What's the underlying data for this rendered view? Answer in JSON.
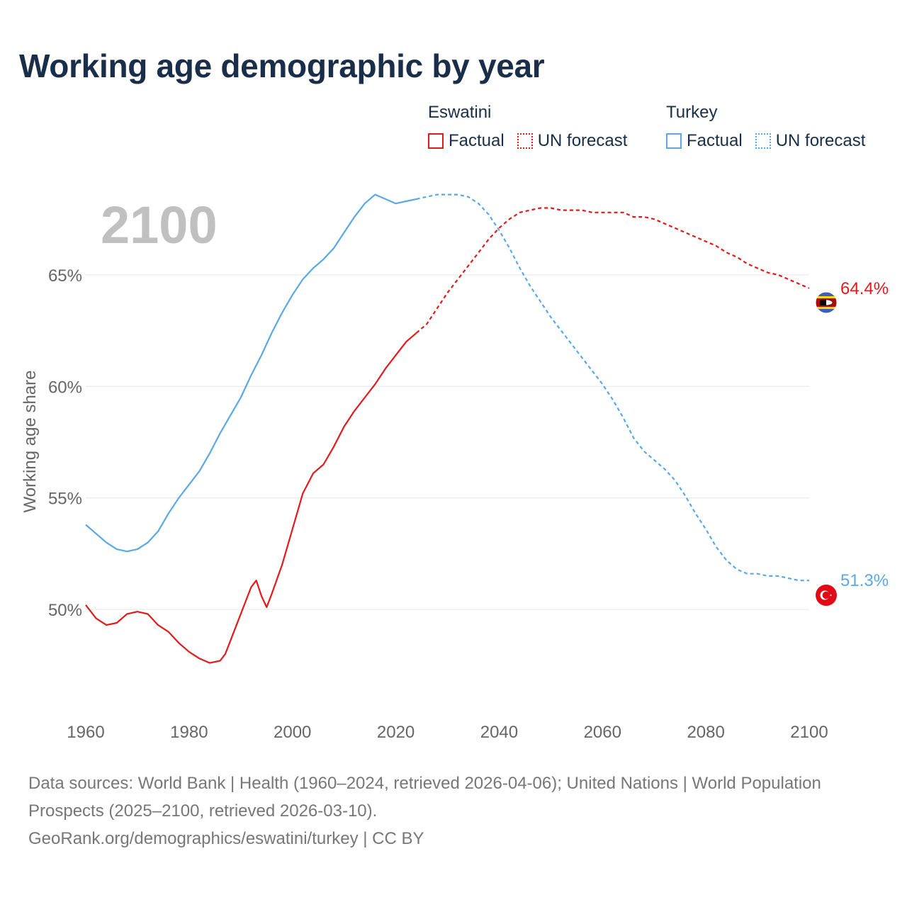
{
  "title": "Working age demographic by year",
  "legend": {
    "groups": [
      {
        "name": "Eswatini",
        "color": "#e31a1c",
        "factual_label": "Factual",
        "forecast_label": "UN forecast"
      },
      {
        "name": "Turkey",
        "color": "#5ba8e6",
        "factual_label": "Factual",
        "forecast_label": "UN forecast"
      }
    ]
  },
  "year_label": "2100",
  "footer": {
    "sources": "Data sources: World Bank | Health (1960–2024, retrieved 2026-04-06); United Nations | World Population Prospects (2025–2100, retrieved 2026-03-10).",
    "attribution": "GeoRank.org/demographics/eswatini/turkey | CC BY"
  },
  "chart_data": {
    "type": "line",
    "title": "Working age demographic by year",
    "xlabel": "",
    "ylabel": "Working age share",
    "xlim": [
      1960,
      2100
    ],
    "ylim": [
      46,
      69
    ],
    "x_ticks": [
      1960,
      1980,
      2000,
      2020,
      2040,
      2060,
      2080,
      2100
    ],
    "x_tick_labels": [
      "1960",
      "1980",
      "2000",
      "2020",
      "2040",
      "2060",
      "2080",
      "2100"
    ],
    "y_ticks": [
      50,
      55,
      60,
      65
    ],
    "y_tick_labels": [
      "50%",
      "55%",
      "60%",
      "65%"
    ],
    "factual_until": 2024,
    "series": [
      {
        "name": "Eswatini",
        "color": "#e31a1c",
        "end_label": "64.4%",
        "flag": "eswatini-flag-icon",
        "points": [
          [
            1960,
            50.2
          ],
          [
            1962,
            49.6
          ],
          [
            1964,
            49.3
          ],
          [
            1966,
            49.4
          ],
          [
            1968,
            49.8
          ],
          [
            1970,
            49.9
          ],
          [
            1972,
            49.8
          ],
          [
            1974,
            49.3
          ],
          [
            1976,
            49.0
          ],
          [
            1978,
            48.5
          ],
          [
            1980,
            48.1
          ],
          [
            1982,
            47.8
          ],
          [
            1984,
            47.6
          ],
          [
            1986,
            47.7
          ],
          [
            1987,
            48.0
          ],
          [
            1988,
            48.6
          ],
          [
            1990,
            49.8
          ],
          [
            1992,
            51.0
          ],
          [
            1993,
            51.3
          ],
          [
            1994,
            50.6
          ],
          [
            1995,
            50.1
          ],
          [
            1996,
            50.7
          ],
          [
            1998,
            52.0
          ],
          [
            2000,
            53.6
          ],
          [
            2002,
            55.2
          ],
          [
            2004,
            56.1
          ],
          [
            2006,
            56.5
          ],
          [
            2008,
            57.3
          ],
          [
            2010,
            58.2
          ],
          [
            2012,
            58.9
          ],
          [
            2014,
            59.5
          ],
          [
            2016,
            60.1
          ],
          [
            2018,
            60.8
          ],
          [
            2020,
            61.4
          ],
          [
            2022,
            62.0
          ],
          [
            2024,
            62.4
          ],
          [
            2026,
            62.8
          ],
          [
            2028,
            63.5
          ],
          [
            2030,
            64.2
          ],
          [
            2032,
            64.8
          ],
          [
            2034,
            65.4
          ],
          [
            2036,
            66.0
          ],
          [
            2038,
            66.6
          ],
          [
            2040,
            67.1
          ],
          [
            2042,
            67.5
          ],
          [
            2044,
            67.8
          ],
          [
            2046,
            67.9
          ],
          [
            2048,
            68.0
          ],
          [
            2050,
            68.0
          ],
          [
            2052,
            67.9
          ],
          [
            2054,
            67.9
          ],
          [
            2056,
            67.9
          ],
          [
            2058,
            67.8
          ],
          [
            2060,
            67.8
          ],
          [
            2062,
            67.8
          ],
          [
            2064,
            67.8
          ],
          [
            2066,
            67.6
          ],
          [
            2068,
            67.6
          ],
          [
            2070,
            67.5
          ],
          [
            2072,
            67.3
          ],
          [
            2074,
            67.1
          ],
          [
            2076,
            66.9
          ],
          [
            2078,
            66.7
          ],
          [
            2080,
            66.5
          ],
          [
            2082,
            66.3
          ],
          [
            2084,
            66.0
          ],
          [
            2086,
            65.8
          ],
          [
            2088,
            65.5
          ],
          [
            2090,
            65.3
          ],
          [
            2092,
            65.1
          ],
          [
            2094,
            65.0
          ],
          [
            2096,
            64.8
          ],
          [
            2098,
            64.6
          ],
          [
            2100,
            64.4
          ]
        ]
      },
      {
        "name": "Turkey",
        "color": "#5ba8e6",
        "end_label": "51.3%",
        "flag": "turkey-flag-icon",
        "points": [
          [
            1960,
            53.8
          ],
          [
            1962,
            53.4
          ],
          [
            1964,
            53.0
          ],
          [
            1966,
            52.7
          ],
          [
            1968,
            52.6
          ],
          [
            1970,
            52.7
          ],
          [
            1972,
            53.0
          ],
          [
            1974,
            53.5
          ],
          [
            1976,
            54.3
          ],
          [
            1978,
            55.0
          ],
          [
            1980,
            55.6
          ],
          [
            1982,
            56.2
          ],
          [
            1984,
            57.0
          ],
          [
            1986,
            57.9
          ],
          [
            1988,
            58.7
          ],
          [
            1990,
            59.5
          ],
          [
            1992,
            60.5
          ],
          [
            1994,
            61.4
          ],
          [
            1996,
            62.4
          ],
          [
            1998,
            63.3
          ],
          [
            2000,
            64.1
          ],
          [
            2002,
            64.8
          ],
          [
            2004,
            65.3
          ],
          [
            2006,
            65.7
          ],
          [
            2008,
            66.2
          ],
          [
            2010,
            66.9
          ],
          [
            2012,
            67.6
          ],
          [
            2014,
            68.2
          ],
          [
            2016,
            68.6
          ],
          [
            2018,
            68.4
          ],
          [
            2020,
            68.2
          ],
          [
            2022,
            68.3
          ],
          [
            2024,
            68.4
          ],
          [
            2026,
            68.5
          ],
          [
            2028,
            68.6
          ],
          [
            2030,
            68.6
          ],
          [
            2032,
            68.6
          ],
          [
            2034,
            68.5
          ],
          [
            2036,
            68.2
          ],
          [
            2038,
            67.7
          ],
          [
            2040,
            67.0
          ],
          [
            2042,
            66.2
          ],
          [
            2044,
            65.3
          ],
          [
            2046,
            64.5
          ],
          [
            2048,
            63.8
          ],
          [
            2050,
            63.1
          ],
          [
            2052,
            62.5
          ],
          [
            2054,
            61.9
          ],
          [
            2056,
            61.3
          ],
          [
            2058,
            60.7
          ],
          [
            2060,
            60.1
          ],
          [
            2062,
            59.4
          ],
          [
            2064,
            58.6
          ],
          [
            2066,
            57.7
          ],
          [
            2068,
            57.1
          ],
          [
            2070,
            56.7
          ],
          [
            2072,
            56.3
          ],
          [
            2074,
            55.8
          ],
          [
            2076,
            55.1
          ],
          [
            2078,
            54.3
          ],
          [
            2080,
            53.6
          ],
          [
            2082,
            52.8
          ],
          [
            2084,
            52.2
          ],
          [
            2086,
            51.8
          ],
          [
            2088,
            51.6
          ],
          [
            2090,
            51.6
          ],
          [
            2092,
            51.5
          ],
          [
            2094,
            51.5
          ],
          [
            2096,
            51.4
          ],
          [
            2098,
            51.3
          ],
          [
            2100,
            51.3
          ]
        ]
      }
    ]
  }
}
